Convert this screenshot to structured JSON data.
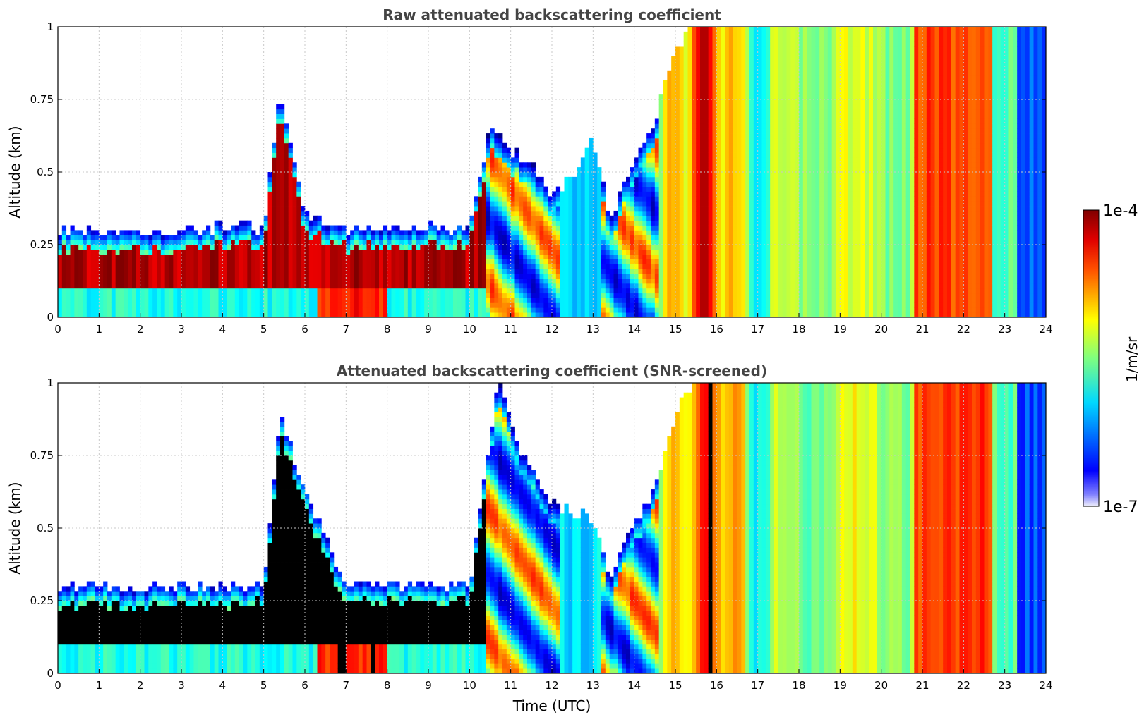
{
  "chart_data": [
    {
      "type": "heatmap",
      "title": "Raw attenuated backscattering coefficient",
      "xlabel": "",
      "ylabel": "Altitude (km)",
      "xlim": [
        0,
        24
      ],
      "ylim": [
        0,
        1
      ],
      "xticks": [
        "0",
        "1",
        "2",
        "3",
        "4",
        "5",
        "6",
        "7",
        "8",
        "9",
        "10",
        "11",
        "12",
        "13",
        "14",
        "15",
        "16",
        "17",
        "18",
        "19",
        "20",
        "21",
        "22",
        "23",
        "24"
      ],
      "yticks": [
        {
          "value": 0,
          "label": "0"
        },
        {
          "value": 0.25,
          "label": "0.25"
        },
        {
          "value": 0.5,
          "label": "0.5"
        },
        {
          "value": 0.75,
          "label": "0.75"
        },
        {
          "value": 1,
          "label": "1"
        }
      ],
      "grid": true,
      "screened": false,
      "color_scale": {
        "min": "1e-7",
        "max": "1e-4",
        "unit": "1/m/sr",
        "scale": "log",
        "colormap": "jet"
      },
      "layer_top_km": [
        [
          0,
          0.27
        ],
        [
          1,
          0.27
        ],
        [
          2,
          0.26
        ],
        [
          3,
          0.27
        ],
        [
          4,
          0.28
        ],
        [
          5,
          0.28
        ],
        [
          5.4,
          0.75
        ],
        [
          6,
          0.33
        ],
        [
          7,
          0.27
        ],
        [
          8,
          0.28
        ],
        [
          9,
          0.28
        ],
        [
          10,
          0.28
        ],
        [
          10.5,
          0.62
        ],
        [
          11,
          0.55
        ],
        [
          11.5,
          0.5
        ],
        [
          12,
          0.38
        ],
        [
          12.5,
          0.45
        ],
        [
          13,
          0.6
        ],
        [
          13.4,
          0.3
        ],
        [
          14,
          0.52
        ],
        [
          14.5,
          0.65
        ],
        [
          15,
          0.88
        ],
        [
          15.5,
          1.0
        ],
        [
          24,
          1.0
        ]
      ]
    },
    {
      "type": "heatmap",
      "title": "Attenuated backscattering coefficient (SNR-screened)",
      "xlabel": "Time (UTC)",
      "ylabel": "Altitude (km)",
      "xlim": [
        0,
        24
      ],
      "ylim": [
        0,
        1
      ],
      "xticks": [
        "0",
        "1",
        "2",
        "3",
        "4",
        "5",
        "6",
        "7",
        "8",
        "9",
        "10",
        "11",
        "12",
        "13",
        "14",
        "15",
        "16",
        "17",
        "18",
        "19",
        "20",
        "21",
        "22",
        "23",
        "24"
      ],
      "yticks": [
        {
          "value": 0,
          "label": "0"
        },
        {
          "value": 0.25,
          "label": "0.25"
        },
        {
          "value": 0.5,
          "label": "0.5"
        },
        {
          "value": 0.75,
          "label": "0.75"
        },
        {
          "value": 1,
          "label": "1"
        }
      ],
      "grid": true,
      "screened": true,
      "color_scale": {
        "min": "1e-7",
        "max": "1e-4",
        "unit": "1/m/sr",
        "scale": "log",
        "colormap": "jet"
      },
      "layer_top_km": [
        [
          0,
          0.27
        ],
        [
          1,
          0.27
        ],
        [
          2,
          0.26
        ],
        [
          3,
          0.27
        ],
        [
          4,
          0.27
        ],
        [
          5,
          0.27
        ],
        [
          5.4,
          0.86
        ],
        [
          6,
          0.6
        ],
        [
          7,
          0.27
        ],
        [
          8,
          0.27
        ],
        [
          9,
          0.27
        ],
        [
          10,
          0.28
        ],
        [
          10.7,
          0.98
        ],
        [
          11.2,
          0.75
        ],
        [
          12,
          0.55
        ],
        [
          13,
          0.5
        ],
        [
          13.4,
          0.3
        ],
        [
          14,
          0.5
        ],
        [
          14.5,
          0.6
        ],
        [
          15,
          0.85
        ],
        [
          15.5,
          1.0
        ],
        [
          24,
          1.0
        ]
      ]
    }
  ],
  "colorbar": {
    "max_label": "1e-4",
    "min_label": "1e-7",
    "unit_label": "1/m/sr"
  }
}
